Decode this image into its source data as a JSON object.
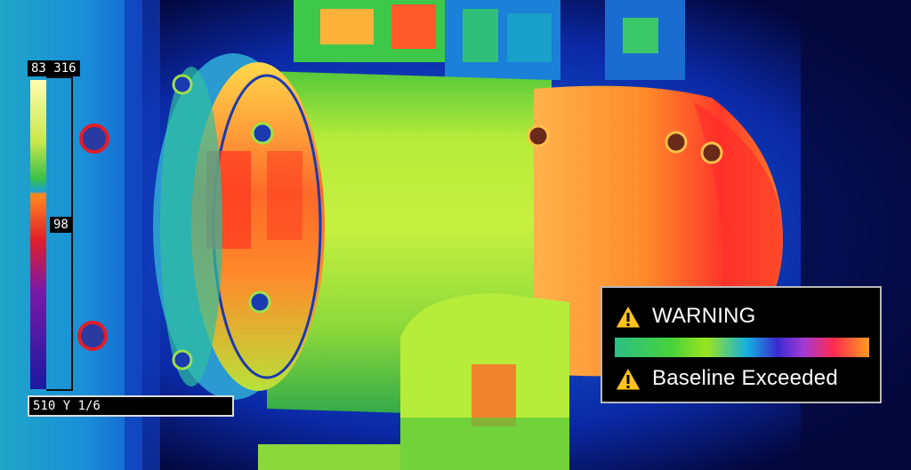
{
  "thermal_scale": {
    "max_label": "83 316",
    "mid_label": "98",
    "min_label": "510 Y 1/6"
  },
  "warning_panel": {
    "title": "WARNING",
    "message": "Baseline Exceeded",
    "icon": "warning-triangle-icon"
  },
  "palette": {
    "scale_top": "#ffffa0",
    "scale_mid_green": "#38c04a",
    "scale_cyan": "#1aa0d0",
    "scale_orange": "#ff8a1e",
    "scale_red": "#e01e2a",
    "scale_purple": "#7a1aa8",
    "scale_bottom": "#1a1aa0"
  }
}
